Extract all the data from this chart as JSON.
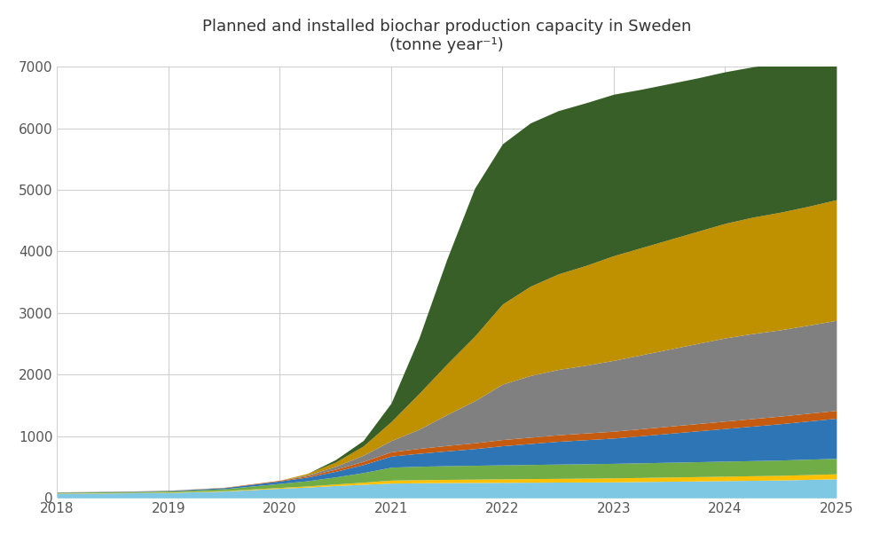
{
  "title_line1": "Planned and installed biochar production capacity in Sweden",
  "title_line2": "(tonne year⁻¹)",
  "years": [
    2018,
    2018.5,
    2019,
    2019.5,
    2020,
    2020.25,
    2020.5,
    2020.75,
    2021,
    2021.25,
    2021.5,
    2021.75,
    2022,
    2022.25,
    2022.5,
    2022.75,
    2023,
    2023.25,
    2023.5,
    2023.75,
    2024,
    2024.25,
    2024.5,
    2024.75,
    2025
  ],
  "xlim": [
    2018,
    2025
  ],
  "ylim": [
    0,
    7000
  ],
  "yticks": [
    0,
    1000,
    2000,
    3000,
    4000,
    5000,
    6000,
    7000
  ],
  "xticks": [
    2018,
    2019,
    2020,
    2021,
    2022,
    2023,
    2024,
    2025
  ],
  "background_color": "#ffffff",
  "grid_color": "#d0d0d0",
  "series": [
    {
      "name": "light_blue",
      "color": "#7ec8e3",
      "values": [
        75,
        80,
        88,
        110,
        155,
        175,
        200,
        220,
        240,
        245,
        248,
        250,
        252,
        254,
        256,
        258,
        260,
        265,
        270,
        275,
        280,
        285,
        290,
        300,
        310
      ]
    },
    {
      "name": "orange_yellow",
      "color": "#ffc000",
      "values": [
        4,
        5,
        6,
        8,
        14,
        18,
        25,
        35,
        48,
        50,
        52,
        54,
        56,
        58,
        60,
        62,
        64,
        66,
        68,
        70,
        72,
        74,
        76,
        78,
        80
      ]
    },
    {
      "name": "bright_green",
      "color": "#70ad47",
      "values": [
        12,
        14,
        18,
        30,
        65,
        85,
        115,
        155,
        210,
        218,
        222,
        225,
        228,
        230,
        232,
        234,
        236,
        238,
        240,
        242,
        244,
        246,
        248,
        250,
        252
      ]
    },
    {
      "name": "dark_blue",
      "color": "#2e75b6",
      "values": [
        4,
        5,
        8,
        18,
        40,
        60,
        90,
        130,
        180,
        210,
        240,
        270,
        310,
        340,
        370,
        390,
        410,
        440,
        470,
        500,
        530,
        560,
        590,
        620,
        650
      ]
    },
    {
      "name": "red_orange",
      "color": "#c55a11",
      "values": [
        2,
        2,
        3,
        5,
        12,
        20,
        35,
        52,
        70,
        80,
        88,
        95,
        100,
        103,
        106,
        109,
        112,
        114,
        116,
        118,
        120,
        122,
        124,
        126,
        128
      ]
    },
    {
      "name": "gray",
      "color": "#808080",
      "values": [
        0,
        0,
        0,
        0,
        0,
        15,
        45,
        100,
        180,
        310,
        500,
        680,
        900,
        1000,
        1060,
        1100,
        1150,
        1200,
        1250,
        1300,
        1350,
        1380,
        1400,
        1430,
        1460
      ]
    },
    {
      "name": "dark_yellow",
      "color": "#bf9000",
      "values": [
        0,
        0,
        0,
        0,
        0,
        25,
        70,
        150,
        310,
        580,
        820,
        1050,
        1300,
        1450,
        1550,
        1620,
        1700,
        1740,
        1780,
        1820,
        1860,
        1890,
        1910,
        1930,
        1960
      ]
    },
    {
      "name": "dark_green",
      "color": "#375f27",
      "values": [
        0,
        0,
        0,
        0,
        0,
        0,
        40,
        90,
        300,
        900,
        1700,
        2400,
        2600,
        2650,
        2650,
        2640,
        2620,
        2570,
        2530,
        2490,
        2460,
        2440,
        2420,
        2400,
        2380
      ]
    }
  ]
}
